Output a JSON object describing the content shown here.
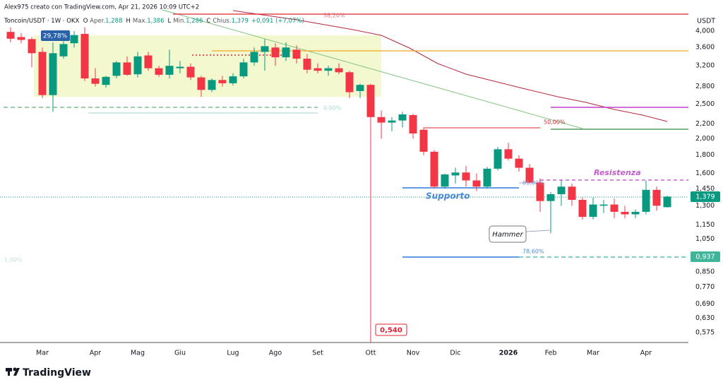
{
  "chart_data": {
    "type": "candlestick",
    "attribution": "Alex975 creato con TradingView.com, Apr 21, 2026 10:09 UTC+2",
    "title": "Toncoin/USDT · 1W · OKX",
    "ohlc_legend": [
      {
        "key": "O",
        "label": "Aper.",
        "value": "1,288"
      },
      {
        "key": "H",
        "label": "Max.",
        "value": "1,386"
      },
      {
        "key": "L",
        "label": "Min.",
        "value": "1,286"
      },
      {
        "key": "C",
        "label": "Chius.",
        "value": "1,379"
      }
    ],
    "change": "+0,091 (+7,07%)",
    "currency": "USDT",
    "brand": "TradingView",
    "log_scale": true,
    "up_color": "#089981",
    "down_color": "#f23645",
    "categories": [
      null,
      null,
      null,
      "Mar",
      null,
      null,
      null,
      null,
      "Apr",
      null,
      null,
      null,
      "Mag",
      null,
      null,
      null,
      "Giu",
      null,
      null,
      null,
      null,
      "Lug",
      null,
      null,
      null,
      "Ago",
      null,
      null,
      null,
      "Set",
      null,
      null,
      null,
      null,
      "Ott",
      null,
      null,
      null,
      "Nov",
      null,
      null,
      null,
      "Dic",
      null,
      null,
      null,
      null,
      "2026",
      null,
      null,
      null,
      "Feb",
      null,
      null,
      null,
      "Mar",
      null,
      null,
      null,
      null,
      "Apr",
      null,
      null
    ],
    "open": [
      3.98,
      3.85,
      3.8,
      3.5,
      2.65,
      3.4,
      3.7,
      3.93,
      2.95,
      2.83,
      3.0,
      3.27,
      3.03,
      3.42,
      3.15,
      3.02,
      3.15,
      3.18,
      2.97,
      2.74,
      2.92,
      2.86,
      2.99,
      3.27,
      3.5,
      3.6,
      3.38,
      3.55,
      3.35,
      3.15,
      3.1,
      3.15,
      3.07,
      2.72,
      2.83,
      2.3,
      2.22,
      2.25,
      2.33,
      2.12,
      1.84,
      1.47,
      1.58,
      1.61,
      1.53,
      1.47,
      1.65,
      1.87,
      1.76,
      1.66,
      1.51,
      1.34,
      1.4,
      1.47,
      1.35,
      1.21,
      1.3,
      1.31,
      1.25,
      1.23,
      1.25,
      1.44,
      1.288
    ],
    "high": [
      4.1,
      3.95,
      3.85,
      3.6,
      3.72,
      3.75,
      4.0,
      4.1,
      3.15,
      3.0,
      3.3,
      3.4,
      3.5,
      3.5,
      3.2,
      3.55,
      3.3,
      3.25,
      3.0,
      2.95,
      3.0,
      3.05,
      3.35,
      3.6,
      3.8,
      3.7,
      3.72,
      3.65,
      3.45,
      3.25,
      3.2,
      3.25,
      3.1,
      2.85,
      2.85,
      2.4,
      2.3,
      2.38,
      2.35,
      2.15,
      1.86,
      1.6,
      1.66,
      1.68,
      1.6,
      1.67,
      1.9,
      1.95,
      1.8,
      1.7,
      1.55,
      1.42,
      1.53,
      1.5,
      1.37,
      1.37,
      1.35,
      1.36,
      1.3,
      1.27,
      1.53,
      1.47,
      1.386
    ],
    "low": [
      3.72,
      3.7,
      3.17,
      2.6,
      2.38,
      3.35,
      3.6,
      2.9,
      2.8,
      2.78,
      2.95,
      3.0,
      2.97,
      3.1,
      2.98,
      2.95,
      3.05,
      2.92,
      2.62,
      2.7,
      2.8,
      2.82,
      2.95,
      3.2,
      3.1,
      3.2,
      3.3,
      3.25,
      3.05,
      3.05,
      3.0,
      3.03,
      2.6,
      2.6,
      0.54,
      2.0,
      2.1,
      2.15,
      2.0,
      1.8,
      1.45,
      1.45,
      1.5,
      1.47,
      1.43,
      1.45,
      1.63,
      1.74,
      1.62,
      1.5,
      1.25,
      1.09,
      1.3,
      1.3,
      1.19,
      1.19,
      1.24,
      1.2,
      1.2,
      1.2,
      1.23,
      1.26,
      1.286
    ],
    "close": [
      3.81,
      3.78,
      3.47,
      2.65,
      3.47,
      3.68,
      3.9,
      2.95,
      2.85,
      2.98,
      3.27,
      3.02,
      3.4,
      3.15,
      3.02,
      3.2,
      3.18,
      2.97,
      2.74,
      2.92,
      2.86,
      2.99,
      3.27,
      3.5,
      3.63,
      3.38,
      3.6,
      3.35,
      3.12,
      3.1,
      3.15,
      3.07,
      2.7,
      2.83,
      2.3,
      2.22,
      2.25,
      2.34,
      2.07,
      1.84,
      1.47,
      1.59,
      1.61,
      1.53,
      1.47,
      1.65,
      1.87,
      1.76,
      1.66,
      1.51,
      1.34,
      1.4,
      1.47,
      1.35,
      1.21,
      1.31,
      1.31,
      1.25,
      1.23,
      1.25,
      1.44,
      1.3,
      1.379
    ],
    "ylim": [
      0.539,
      4.67
    ],
    "yticks": [
      {
        "value": 4,
        "label": "4,000"
      },
      {
        "value": 3.6,
        "label": "3,600"
      },
      {
        "value": 3.2,
        "label": "3,200"
      },
      {
        "value": 2.8,
        "label": "2,800"
      },
      {
        "value": 2.5,
        "label": "2,500"
      },
      {
        "value": 2.2,
        "label": "2,200"
      },
      {
        "value": 2,
        "label": "2,000"
      },
      {
        "value": 1.8,
        "label": "1,800"
      },
      {
        "value": 1.6,
        "label": "1,600"
      },
      {
        "value": 1.45,
        "label": "1,450"
      },
      {
        "value": 1.3,
        "label": "1,300"
      },
      {
        "value": 1.15,
        "label": "1,150"
      },
      {
        "value": 1.05,
        "label": "1,050"
      },
      {
        "value": 0.85,
        "label": "0,850"
      },
      {
        "value": 0.77,
        "label": "0,770"
      },
      {
        "value": 0.69,
        "label": "0,690"
      },
      {
        "value": 0.63,
        "label": "0,630"
      },
      {
        "value": 0.575,
        "label": "0,575"
      }
    ],
    "grid": false,
    "annotations": {
      "range_percent": "29,78%",
      "fib_382": "38,20%",
      "fib_0": "0,00%",
      "fib_50": "50,00%",
      "fib_618": "61,80%",
      "fib_786": "78,60%",
      "fib_100": "1,00%",
      "support": "Supporto",
      "resistance": "Resistenza",
      "hammer": "Hammer",
      "low_label": "0,540",
      "last_price": "1,379",
      "level_price": "0,937"
    }
  }
}
